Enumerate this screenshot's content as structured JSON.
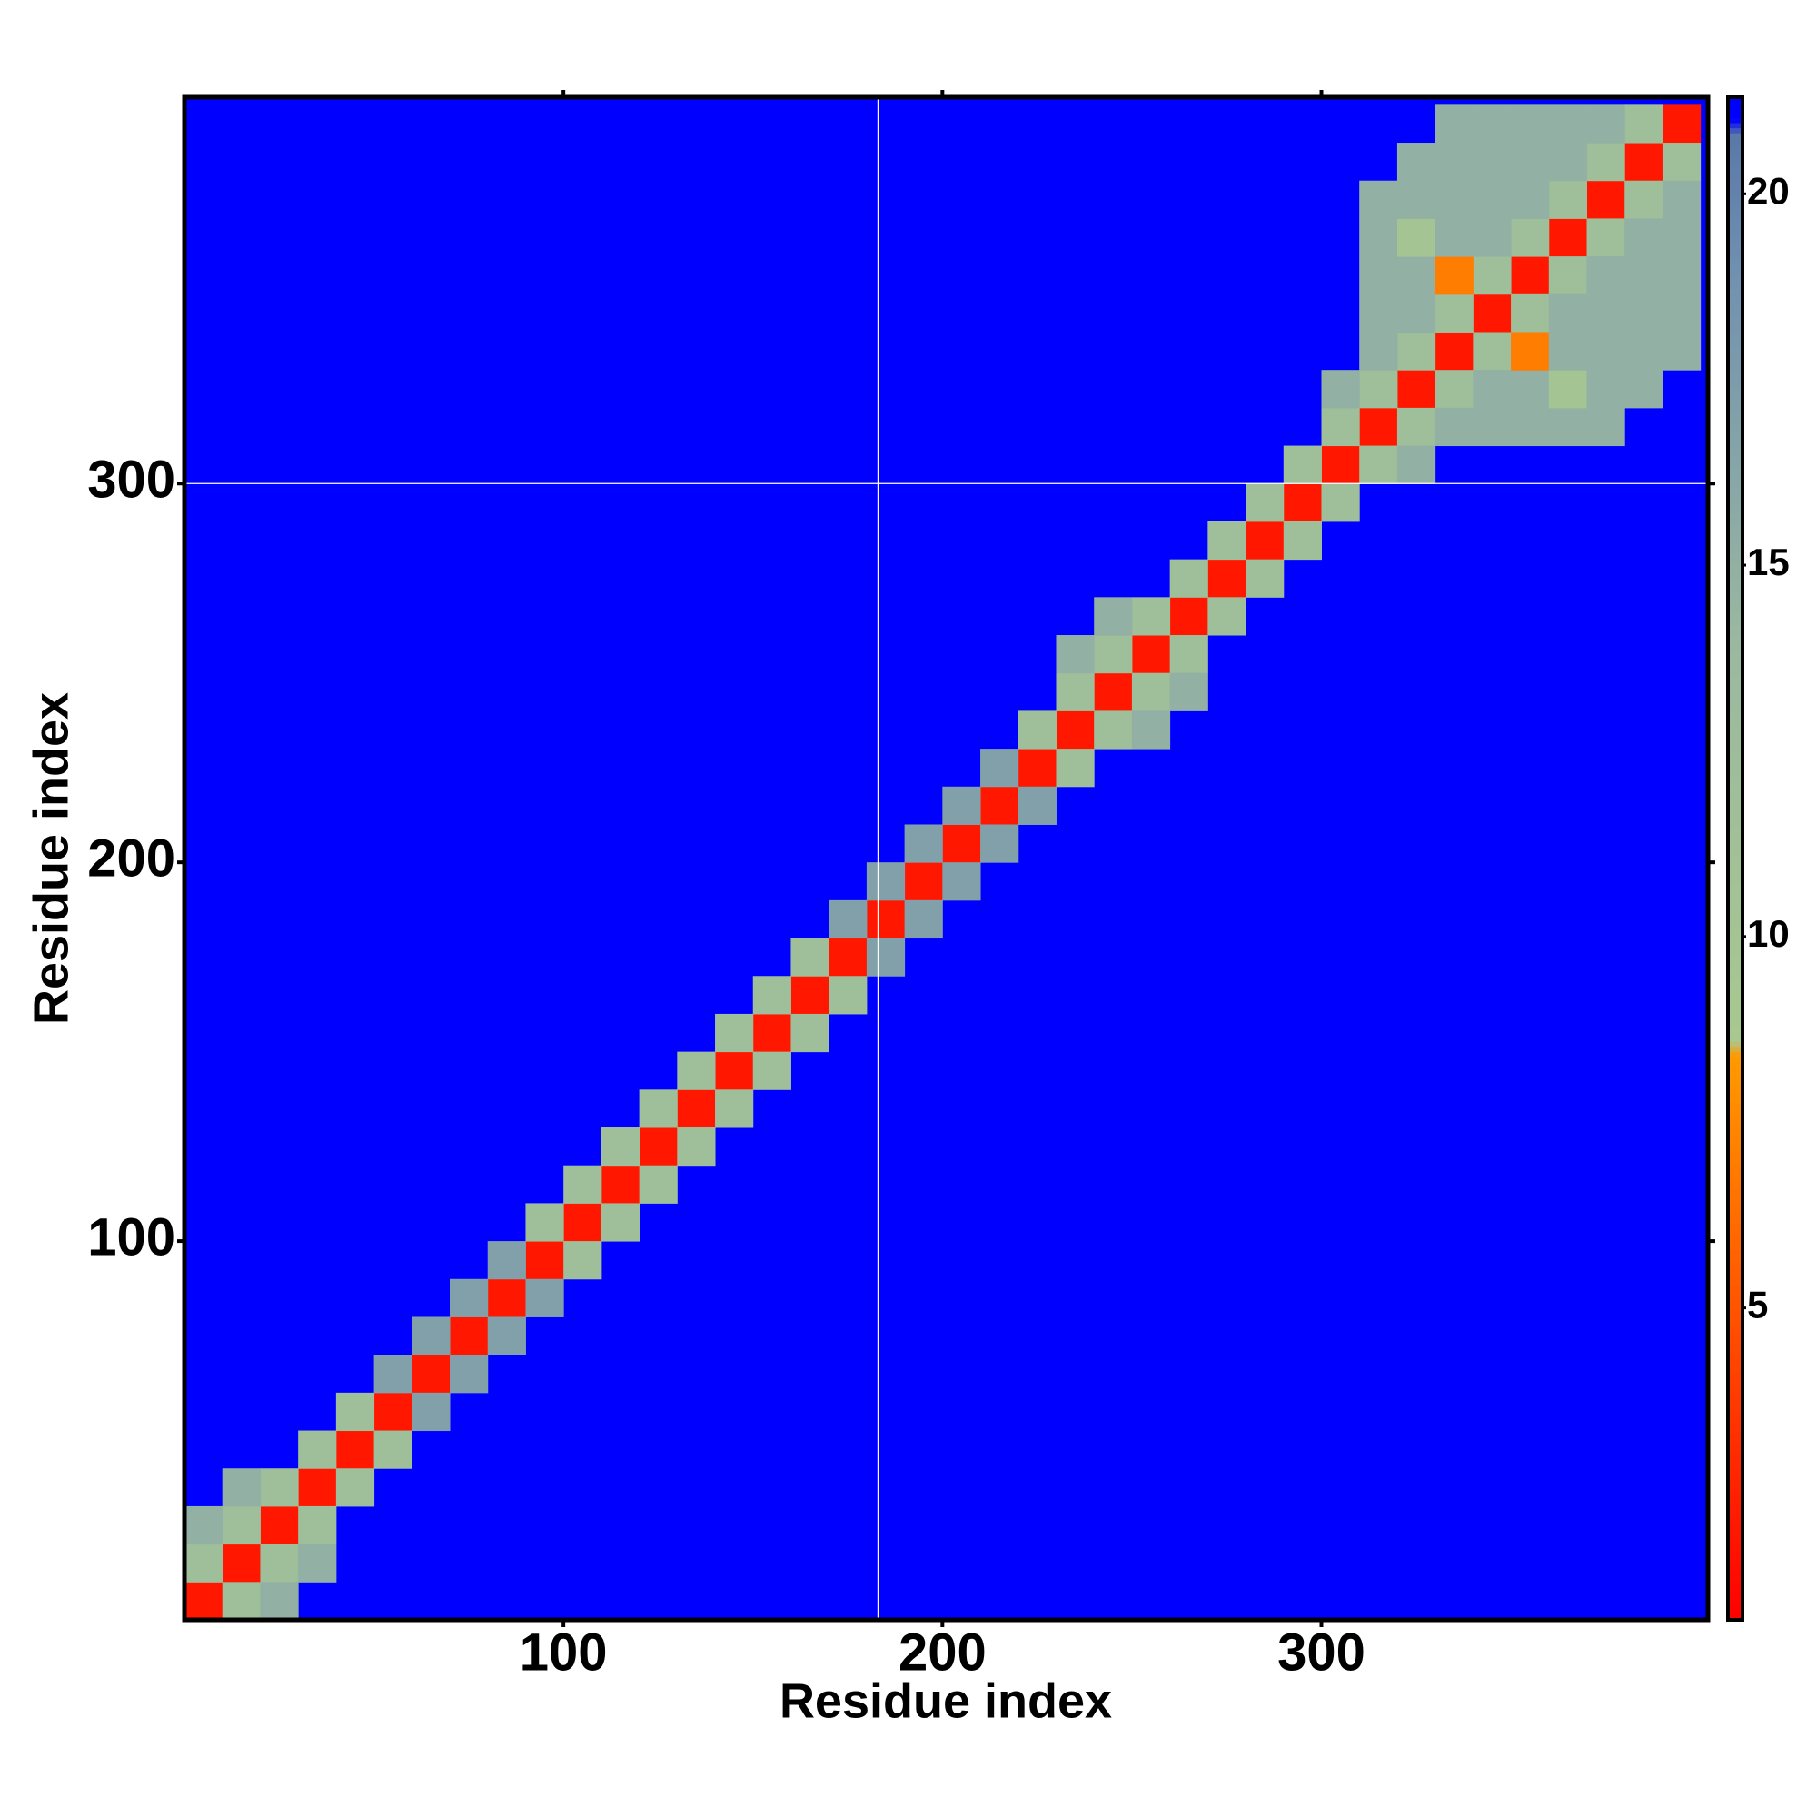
{
  "chart_data": {
    "type": "heatmap",
    "x_label": "Residue index",
    "y_label": "Residue index",
    "xlim": [
      0,
      402
    ],
    "ylim": [
      0,
      402
    ],
    "xticks": [
      100,
      200,
      300
    ],
    "yticks": [
      100,
      200,
      300
    ],
    "bin_width": 10,
    "background_value": 21.3,
    "cells": {
      "x": [
        0,
        10,
        20,
        30,
        40,
        50,
        60,
        70,
        80,
        90,
        100,
        110,
        120,
        130,
        140,
        150,
        160,
        170,
        180,
        190,
        200,
        210,
        220,
        230,
        240,
        250,
        260,
        270,
        280,
        290,
        300,
        310,
        320,
        330,
        340,
        350,
        360,
        370,
        380,
        390,
        0,
        10,
        10,
        20,
        20,
        30,
        30,
        40,
        40,
        50,
        50,
        60,
        60,
        70,
        70,
        80,
        80,
        90,
        90,
        100,
        100,
        110,
        110,
        120,
        120,
        130,
        130,
        140,
        140,
        150,
        150,
        160,
        160,
        170,
        170,
        180,
        180,
        190,
        190,
        200,
        200,
        210,
        210,
        220,
        220,
        230,
        230,
        240,
        240,
        250,
        250,
        260,
        260,
        270,
        270,
        280,
        280,
        290,
        290,
        300,
        300,
        310,
        310,
        320,
        320,
        330,
        330,
        340,
        340,
        350,
        350,
        360,
        360,
        370,
        370,
        380,
        380,
        390,
        0,
        20,
        10,
        30,
        230,
        250,
        240,
        260,
        300,
        320,
        310,
        330,
        310,
        340,
        310,
        350,
        310,
        360,
        310,
        370,
        320,
        340,
        320,
        350,
        320,
        360,
        320,
        370,
        320,
        380,
        330,
        350,
        330,
        360,
        330,
        370,
        330,
        380,
        330,
        390,
        340,
        360,
        340,
        370,
        340,
        380,
        340,
        390,
        350,
        370,
        350,
        380,
        350,
        390,
        360,
        380,
        360,
        390,
        370,
        390
      ],
      "y": [
        0,
        10,
        20,
        30,
        40,
        50,
        60,
        70,
        80,
        90,
        100,
        110,
        120,
        130,
        140,
        150,
        160,
        170,
        180,
        190,
        200,
        210,
        220,
        230,
        240,
        250,
        260,
        270,
        280,
        290,
        300,
        310,
        320,
        330,
        340,
        350,
        360,
        370,
        380,
        390,
        10,
        0,
        20,
        10,
        30,
        20,
        40,
        30,
        50,
        40,
        60,
        50,
        70,
        60,
        80,
        70,
        90,
        80,
        100,
        90,
        110,
        100,
        120,
        110,
        130,
        120,
        140,
        130,
        150,
        140,
        160,
        150,
        170,
        160,
        180,
        170,
        190,
        180,
        200,
        190,
        210,
        200,
        220,
        210,
        230,
        220,
        240,
        230,
        250,
        240,
        260,
        250,
        270,
        260,
        280,
        270,
        290,
        280,
        300,
        290,
        310,
        300,
        320,
        310,
        330,
        320,
        340,
        330,
        350,
        340,
        360,
        350,
        370,
        360,
        380,
        370,
        390,
        380,
        20,
        0,
        30,
        10,
        250,
        230,
        260,
        240,
        320,
        300,
        330,
        310,
        340,
        310,
        350,
        310,
        360,
        310,
        370,
        310,
        340,
        320,
        350,
        320,
        360,
        320,
        370,
        320,
        380,
        320,
        350,
        330,
        360,
        330,
        370,
        330,
        380,
        330,
        390,
        330,
        360,
        340,
        370,
        340,
        380,
        340,
        390,
        340,
        370,
        350,
        380,
        350,
        390,
        350,
        380,
        360,
        390,
        360,
        390,
        370
      ],
      "values": [
        2,
        2,
        2,
        2,
        2,
        2,
        2,
        2,
        2,
        2,
        2,
        2,
        2,
        2,
        2,
        2,
        2,
        2,
        2,
        2,
        2,
        2,
        2,
        2,
        2,
        2,
        2,
        2,
        2,
        2,
        2,
        2,
        2,
        2,
        2,
        2,
        2,
        2,
        2,
        2,
        12,
        12,
        12,
        12,
        12,
        12,
        12,
        12,
        12,
        12,
        17,
        17,
        17,
        17,
        17,
        17,
        17,
        17,
        12,
        12,
        12,
        12,
        12,
        12,
        12,
        12,
        12,
        12,
        12,
        12,
        12,
        12,
        12,
        12,
        17,
        17,
        17,
        17,
        17,
        17,
        17,
        17,
        17,
        17,
        12,
        12,
        12,
        12,
        12,
        12,
        12,
        12,
        12,
        12,
        12,
        12,
        12,
        12,
        12,
        12,
        12,
        12,
        12,
        12,
        12,
        12,
        12,
        12,
        12,
        12,
        12,
        12,
        12,
        12,
        12,
        12,
        12,
        12,
        15,
        15,
        15,
        15,
        15,
        15,
        15,
        15,
        15,
        15,
        15,
        15,
        15,
        15,
        15,
        15,
        15,
        15,
        15,
        15,
        15,
        15,
        15,
        15,
        10,
        10,
        15,
        15,
        15,
        15,
        7,
        7,
        15,
        15,
        15,
        15,
        15,
        15,
        15,
        15,
        15,
        15,
        15,
        15,
        15,
        15,
        15,
        15,
        15,
        15,
        15,
        15,
        15,
        15,
        15,
        15,
        15,
        15,
        15,
        15
      ]
    },
    "colorbar": {
      "clim": [
        0.8,
        21.3
      ],
      "ticks": [
        5,
        10,
        15,
        20
      ],
      "colorscale": [
        [
          0.8,
          "#ff0000"
        ],
        [
          3,
          "#ff2a00"
        ],
        [
          8.4,
          "#ff9a00"
        ],
        [
          8.6,
          "#a8c890"
        ],
        [
          14,
          "#9ab8a0"
        ],
        [
          19,
          "#7090b0"
        ],
        [
          20.8,
          "#5a78a8"
        ],
        [
          21,
          "#0000ff"
        ]
      ]
    },
    "reference_lines": {
      "x": 183,
      "y": 300,
      "color": "#ffffff"
    }
  }
}
